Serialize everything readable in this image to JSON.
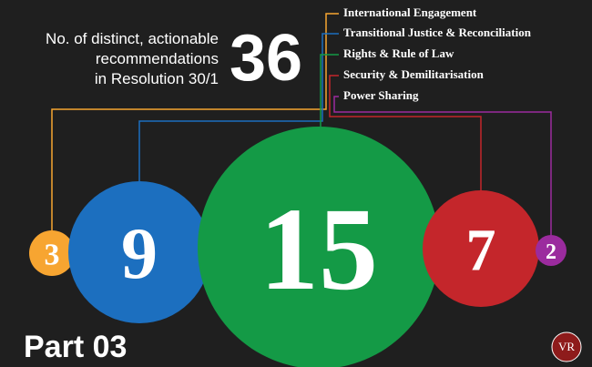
{
  "header": {
    "title_lines": [
      "No. of distinct, actionable",
      "recommendations",
      "in Resolution 30/1"
    ],
    "total": "36"
  },
  "items": [
    {
      "label": "International Engagement",
      "value": "3",
      "color": "#f7a531"
    },
    {
      "label": "Transitional Justice & Reconciliation",
      "value": "9",
      "color": "#1c6fbf"
    },
    {
      "label": "Rights & Rule of Law",
      "value": "15",
      "color": "#149a46"
    },
    {
      "label": "Security & Demilitarisation",
      "value": "7",
      "color": "#c4262b"
    },
    {
      "label": "Power Sharing",
      "value": "2",
      "color": "#9b2b9e"
    }
  ],
  "footer": {
    "part": "Part 03",
    "logo": "VR"
  }
}
